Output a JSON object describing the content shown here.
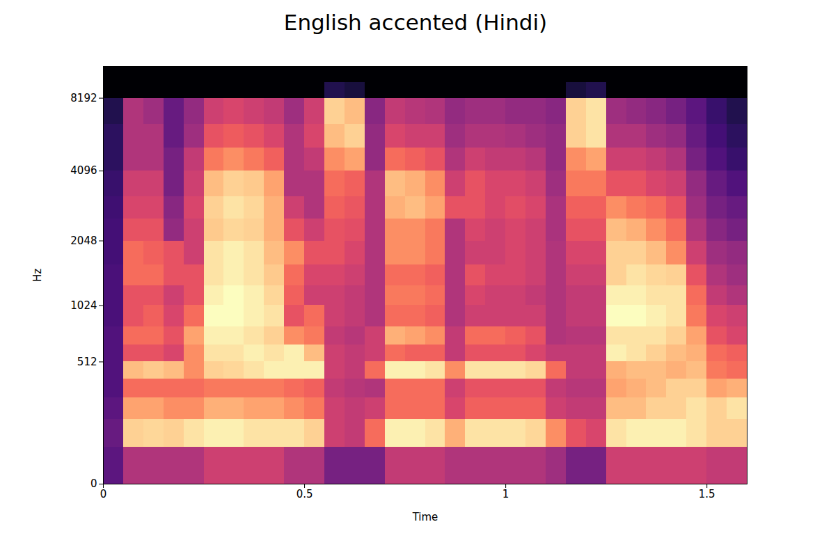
{
  "chart_data": {
    "type": "heatmap",
    "title": "English accented (Hindi)",
    "x_label": "Time",
    "y_label": "Hz",
    "color": "magma",
    "xlim": [
      0,
      1.6
    ],
    "ylim": [
      0,
      11025
    ],
    "xticks": [
      0,
      0.5,
      1,
      1.5
    ],
    "yticks": [
      0,
      512,
      1024,
      2048,
      4096,
      8192
    ],
    "x_bins": [
      0,
      0.05,
      0.1,
      0.15,
      0.2,
      0.25,
      0.3,
      0.35,
      0.4,
      0.45,
      0.5,
      0.55,
      0.6,
      0.65,
      0.7,
      0.75,
      0.8,
      0.85,
      0.9,
      0.95,
      1,
      1.05,
      1.1,
      1.15,
      1.2,
      1.25,
      1.3,
      1.35,
      1.4,
      1.45,
      1.5,
      1.55,
      1.6
    ],
    "y_bins": [
      0,
      100,
      200,
      300,
      400,
      512,
      640,
      800,
      1024,
      1280,
      1600,
      2048,
      2560,
      3200,
      4096,
      5120,
      6400,
      8192,
      9500,
      11025
    ],
    "values": [
      [
        -60,
        -45,
        -45,
        -45,
        -45,
        -40,
        -40,
        -40,
        -40,
        -45,
        -45,
        -55,
        -55,
        -55,
        -42,
        -42,
        -42,
        -45,
        -45,
        -45,
        -45,
        -45,
        -48,
        -55,
        -55,
        -40,
        -40,
        -40,
        -40,
        -40,
        -42,
        -42
      ],
      [
        -58,
        -15,
        -14,
        -15,
        -12,
        -10,
        -10,
        -12,
        -12,
        -12,
        -15,
        -40,
        -42,
        -30,
        -10,
        -10,
        -12,
        -20,
        -12,
        -12,
        -12,
        -14,
        -25,
        -35,
        -38,
        -12,
        -10,
        -10,
        -10,
        -12,
        -15,
        -15
      ],
      [
        -60,
        -22,
        -22,
        -25,
        -25,
        -20,
        -20,
        -22,
        -22,
        -25,
        -28,
        -40,
        -42,
        -40,
        -30,
        -30,
        -30,
        -38,
        -32,
        -32,
        -32,
        -32,
        -40,
        -42,
        -42,
        -18,
        -18,
        -15,
        -15,
        -12,
        -15,
        -12
      ],
      [
        -62,
        -30,
        -30,
        -30,
        -30,
        -28,
        -28,
        -28,
        -28,
        -30,
        -32,
        -42,
        -44,
        -45,
        -30,
        -30,
        -30,
        -40,
        -35,
        -35,
        -35,
        -35,
        -42,
        -44,
        -44,
        -22,
        -20,
        -18,
        -15,
        -15,
        -22,
        -20
      ],
      [
        -62,
        -18,
        -16,
        -18,
        -25,
        -15,
        -14,
        -12,
        -10,
        -10,
        -10,
        -40,
        -42,
        -30,
        -10,
        -10,
        -12,
        -25,
        -12,
        -12,
        -12,
        -14,
        -30,
        -42,
        -42,
        -20,
        -18,
        -18,
        -20,
        -18,
        -28,
        -30
      ],
      [
        -62,
        -35,
        -35,
        -38,
        -25,
        -12,
        -12,
        -10,
        -12,
        -10,
        -18,
        -40,
        -42,
        -40,
        -30,
        -32,
        -32,
        -42,
        -35,
        -35,
        -35,
        -38,
        -42,
        -42,
        -42,
        -10,
        -12,
        -15,
        -18,
        -20,
        -30,
        -32
      ],
      [
        -62,
        -30,
        -30,
        -35,
        -22,
        -10,
        -10,
        -12,
        -15,
        -25,
        -28,
        -42,
        -44,
        -40,
        -20,
        -22,
        -25,
        -42,
        -30,
        -30,
        -32,
        -35,
        -45,
        -44,
        -44,
        -12,
        -12,
        -12,
        -15,
        -22,
        -35,
        -38
      ],
      [
        -63,
        -35,
        -32,
        -38,
        -30,
        -8,
        -8,
        -10,
        -12,
        -35,
        -30,
        -40,
        -42,
        -45,
        -30,
        -30,
        -32,
        -45,
        -40,
        -40,
        -40,
        -40,
        -45,
        -42,
        -42,
        -8,
        -8,
        -10,
        -12,
        -28,
        -38,
        -40
      ],
      [
        -63,
        -35,
        -35,
        -40,
        -35,
        -10,
        -8,
        -10,
        -14,
        -32,
        -40,
        -40,
        -42,
        -45,
        -28,
        -28,
        -30,
        -45,
        -38,
        -40,
        -40,
        -42,
        -45,
        -42,
        -42,
        -10,
        -10,
        -12,
        -12,
        -30,
        -42,
        -45
      ],
      [
        -63,
        -30,
        -30,
        -35,
        -35,
        -12,
        -10,
        -12,
        -16,
        -30,
        -38,
        -38,
        -40,
        -45,
        -30,
        -30,
        -32,
        -45,
        -35,
        -38,
        -38,
        -40,
        -45,
        -40,
        -40,
        -15,
        -12,
        -14,
        -15,
        -35,
        -45,
        -48
      ],
      [
        -64,
        -30,
        -32,
        -35,
        -40,
        -12,
        -10,
        -12,
        -18,
        -25,
        -35,
        -35,
        -38,
        -45,
        -25,
        -25,
        -28,
        -45,
        -40,
        -40,
        -38,
        -40,
        -45,
        -38,
        -38,
        -15,
        -15,
        -18,
        -25,
        -40,
        -48,
        -50
      ],
      [
        -64,
        -35,
        -35,
        -50,
        -40,
        -16,
        -14,
        -15,
        -20,
        -35,
        -40,
        -35,
        -36,
        -45,
        -25,
        -25,
        -28,
        -45,
        -38,
        -40,
        -38,
        -40,
        -46,
        -35,
        -35,
        -18,
        -20,
        -25,
        -30,
        -45,
        -52,
        -55
      ],
      [
        -65,
        -38,
        -38,
        -52,
        -38,
        -15,
        -12,
        -14,
        -20,
        -40,
        -45,
        -32,
        -34,
        -45,
        -20,
        -18,
        -22,
        -35,
        -35,
        -38,
        -36,
        -38,
        -46,
        -32,
        -32,
        -25,
        -28,
        -30,
        -35,
        -48,
        -55,
        -58
      ],
      [
        -66,
        -40,
        -40,
        -55,
        -40,
        -18,
        -15,
        -16,
        -22,
        -45,
        -45,
        -30,
        -32,
        -45,
        -18,
        -20,
        -25,
        -40,
        -35,
        -38,
        -38,
        -40,
        -48,
        -28,
        -28,
        -35,
        -35,
        -38,
        -40,
        -50,
        -58,
        -62
      ],
      [
        -68,
        -45,
        -45,
        -55,
        -42,
        -28,
        -25,
        -28,
        -32,
        -45,
        -42,
        -25,
        -22,
        -50,
        -30,
        -32,
        -35,
        -45,
        -40,
        -42,
        -42,
        -44,
        -50,
        -25,
        -22,
        -40,
        -40,
        -42,
        -45,
        -55,
        -62,
        -66
      ],
      [
        -68,
        -45,
        -45,
        -58,
        -48,
        -35,
        -33,
        -35,
        -38,
        -45,
        -38,
        -18,
        -15,
        -50,
        -38,
        -40,
        -40,
        -48,
        -45,
        -45,
        -46,
        -48,
        -50,
        -15,
        -12,
        -45,
        -45,
        -48,
        -50,
        -58,
        -64,
        -68
      ],
      [
        -70,
        -45,
        -48,
        -58,
        -50,
        -40,
        -38,
        -40,
        -42,
        -48,
        -40,
        -15,
        -18,
        -52,
        -42,
        -44,
        -45,
        -50,
        -48,
        -48,
        -50,
        -50,
        -52,
        -15,
        -12,
        -48,
        -50,
        -52,
        -55,
        -60,
        -66,
        -70
      ],
      [
        -80,
        -80,
        -80,
        -80,
        -80,
        -80,
        -80,
        -80,
        -80,
        -80,
        -80,
        -70,
        -72,
        -80,
        -80,
        -80,
        -80,
        -80,
        -80,
        -80,
        -80,
        -80,
        -80,
        -72,
        -70,
        -80,
        -80,
        -80,
        -80,
        -80,
        -80,
        -80
      ],
      [
        -80,
        -80,
        -80,
        -80,
        -80,
        -80,
        -80,
        -80,
        -80,
        -80,
        -80,
        -80,
        -80,
        -80,
        -80,
        -80,
        -80,
        -80,
        -80,
        -80,
        -80,
        -80,
        -80,
        -80,
        -80,
        -80,
        -80,
        -80,
        -80,
        -80,
        -80,
        -80
      ]
    ]
  }
}
